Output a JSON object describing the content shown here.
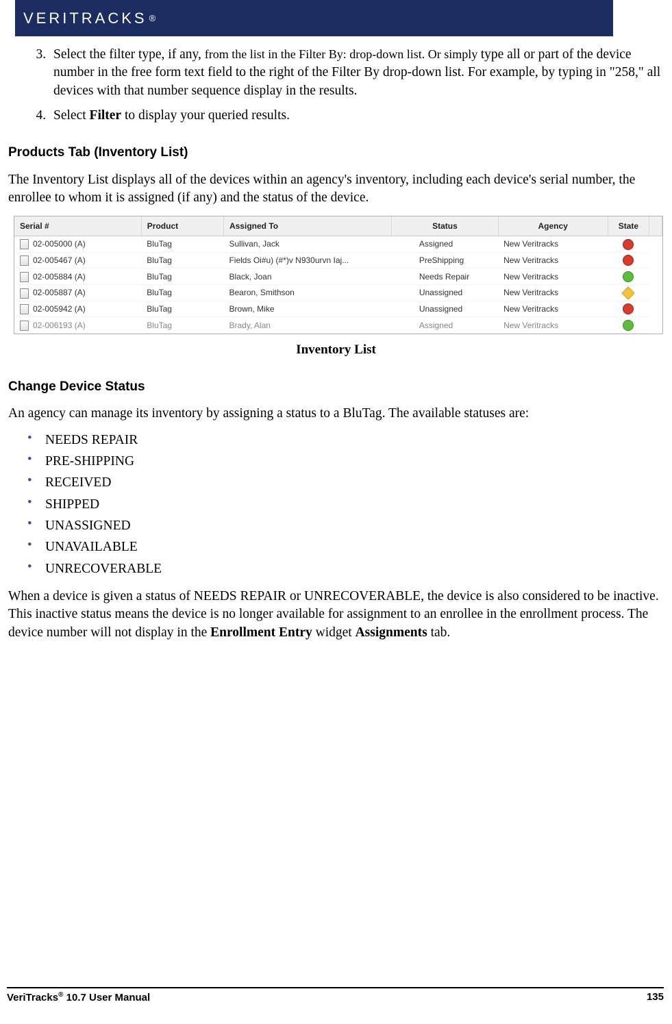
{
  "header": {
    "brand": "VERITRACKS",
    "reg": "®"
  },
  "steps": {
    "item3_num": "3.",
    "item3_p1": "Select the filter type, if any, ",
    "item3_p2": "from the list in the Filter By: drop-down list. Or simply ",
    "item3_p3": "type all or part of the device number in the free form text field to the right of the Filter By drop-down list. For example, by typing in \"258,\" all devices with that number sequence display in the results.",
    "item4_num": "4.",
    "item4_p1": "Select ",
    "item4_bold": "Filter",
    "item4_p2": " to display your queried results."
  },
  "section1": {
    "title": "Products Tab (Inventory List)",
    "intro": "The Inventory List displays all of the devices within an agency's inventory, including each device's serial number, the enrollee to whom it is assigned (if any) and the status of the device.",
    "caption": "Inventory List"
  },
  "table": {
    "columns": [
      "Serial #",
      "Product",
      "Assigned To",
      "Status",
      "Agency",
      "State"
    ],
    "rows": [
      {
        "serial": "02-005000 (A)",
        "product": "BluTag",
        "assigned": "Sullivan, Jack",
        "status": "Assigned",
        "agency": "New Veritracks",
        "state": "red"
      },
      {
        "serial": "02-005467 (A)",
        "product": "BluTag",
        "assigned": "Fields Oi#u) (#*)v N930urvn Iaj...",
        "status": "PreShipping",
        "agency": "New Veritracks",
        "state": "red"
      },
      {
        "serial": "02-005884 (A)",
        "product": "BluTag",
        "assigned": "Black, Joan",
        "status": "Needs Repair",
        "agency": "New Veritracks",
        "state": "green"
      },
      {
        "serial": "02-005887 (A)",
        "product": "BluTag",
        "assigned": "Bearon, Smithson",
        "status": "Unassigned",
        "agency": "New Veritracks",
        "state": "yellow"
      },
      {
        "serial": "02-005942 (A)",
        "product": "BluTag",
        "assigned": "Brown, Mike",
        "status": "Unassigned",
        "agency": "New Veritracks",
        "state": "red"
      },
      {
        "serial": "02-006193 (A)",
        "product": "BluTag",
        "assigned": "Brady, Alan",
        "status": "Assigned",
        "agency": "New Veritracks",
        "state": "green"
      }
    ]
  },
  "section2": {
    "title": "Change Device Status",
    "intro": "An agency can manage its inventory by assigning a status to a BluTag. The available statuses are:",
    "bullets": [
      "NEEDS REPAIR",
      "PRE-SHIPPING",
      "RECEIVED",
      "SHIPPED",
      "UNASSIGNED",
      "UNAVAILABLE",
      "UNRECOVERABLE"
    ],
    "para2_a": "When a device is given a status of NEEDS REPAIR or UNRECOVERABLE, the device is also considered to be inactive. This inactive status means the device is no longer available for assignment to an enrollee in the enrollment process. The device number will not display in the ",
    "para2_b1": "Enrollment Entry",
    "para2_c": " widget ",
    "para2_b2": "Assignments",
    "para2_d": " tab."
  },
  "footer": {
    "left_a": "VeriTracks",
    "left_sup": "®",
    "left_b": " 10.7 User Manual",
    "page": "135"
  }
}
